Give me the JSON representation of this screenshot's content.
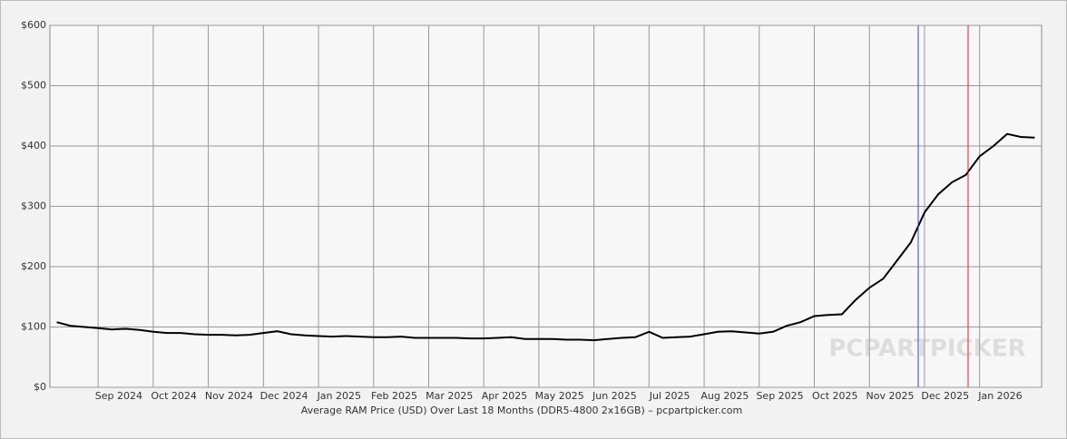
{
  "chart_data": {
    "type": "line",
    "caption": "Average RAM Price (USD) Over Last 18 Months (DDR5-4800 2x16GB) – pcpartpicker.com",
    "watermark": "PCPARTPICKER",
    "categories": [
      null,
      null,
      null,
      "Sep 2024",
      null,
      null,
      null,
      "Oct 2024",
      null,
      null,
      null,
      "Nov 2024",
      null,
      null,
      null,
      "Dec 2024",
      null,
      null,
      null,
      "Jan 2025",
      null,
      null,
      null,
      "Feb 2025",
      null,
      null,
      null,
      "Mar 2025",
      null,
      null,
      null,
      "Apr 2025",
      null,
      null,
      null,
      "May 2025",
      null,
      null,
      null,
      "Jun 2025",
      null,
      null,
      null,
      "Jul 2025",
      null,
      null,
      null,
      "Aug 2025",
      null,
      null,
      null,
      "Sep 2025",
      null,
      null,
      null,
      "Oct 2025",
      null,
      null,
      null,
      "Nov 2025",
      null,
      null,
      null,
      "Dec 2025",
      null,
      null,
      null,
      "Jan 2026",
      null,
      null,
      null,
      null
    ],
    "values": [
      108,
      102,
      100,
      98,
      96,
      97,
      95,
      92,
      90,
      90,
      88,
      87,
      87,
      86,
      87,
      90,
      93,
      88,
      86,
      85,
      84,
      85,
      84,
      83,
      83,
      84,
      82,
      82,
      82,
      82,
      81,
      81,
      82,
      83,
      80,
      80,
      80,
      79,
      79,
      78,
      80,
      82,
      83,
      92,
      82,
      83,
      84,
      88,
      92,
      93,
      91,
      89,
      92,
      102,
      108,
      118,
      120,
      121,
      145,
      165,
      180,
      210,
      240,
      290,
      320,
      340,
      352,
      383,
      400,
      420,
      415,
      414
    ],
    "color": "#000000",
    "ylim": [
      0,
      600
    ],
    "yticks": [
      {
        "value": 0,
        "label": "$0"
      },
      {
        "value": 100,
        "label": "$100"
      },
      {
        "value": 200,
        "label": "$200"
      },
      {
        "value": 300,
        "label": "$300"
      },
      {
        "value": 400,
        "label": "$400"
      },
      {
        "value": 500,
        "label": "$500"
      },
      {
        "value": 600,
        "label": "$600"
      }
    ],
    "grid": true
  }
}
